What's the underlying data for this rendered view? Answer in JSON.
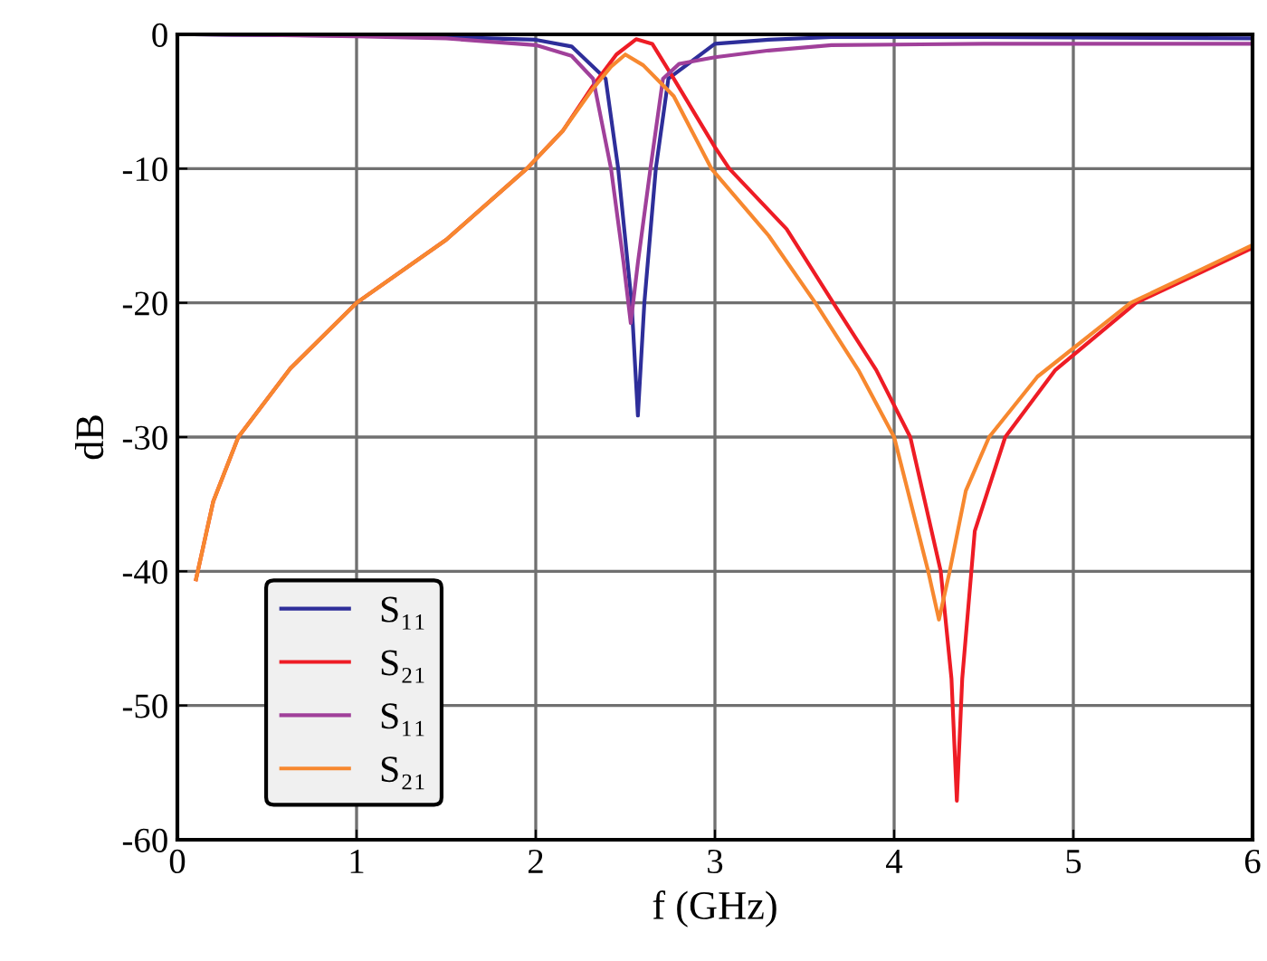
{
  "chart_data": {
    "type": "line",
    "xlabel": "f (GHz)",
    "ylabel": "dB",
    "xlim": [
      0,
      6
    ],
    "xticks": [
      0,
      1,
      2,
      3,
      4,
      5,
      6
    ],
    "ylim": [
      -60,
      0
    ],
    "yticks": [
      {
        "value": -60,
        "label": "-60"
      },
      {
        "value": -50,
        "label": "-50"
      },
      {
        "value": -40,
        "label": "-40"
      },
      {
        "value": -30,
        "label": "-30"
      },
      {
        "value": -20,
        "label": "-20"
      },
      {
        "value": -10,
        "label": "-10"
      },
      0
    ],
    "grid": true,
    "legend": "bottom left",
    "line_style": "solid",
    "marker": "none",
    "series": [
      {
        "name": "S₁₁",
        "color": "#2e2e9a",
        "x": [
          0.1,
          0.5,
          1.0,
          1.5,
          2.0,
          2.2,
          2.39,
          2.46,
          2.535,
          2.57,
          2.606,
          2.67,
          2.74,
          3.0,
          3.3,
          3.65,
          4.5,
          6.0
        ],
        "values": [
          0,
          -0.05,
          -0.1,
          -0.2,
          -0.4,
          -0.9,
          -3.3,
          -10,
          -20,
          -28.4,
          -20,
          -10,
          -3.3,
          -0.7,
          -0.4,
          -0.2,
          -0.2,
          -0.3
        ]
      },
      {
        "name": "S₂₁",
        "color": "#ee1c25",
        "x": [
          0.104,
          0.2,
          0.34,
          0.63,
          1.0,
          1.5,
          1.95,
          2.15,
          2.31,
          2.45,
          2.56,
          2.65,
          2.77,
          3.0,
          3.08,
          3.4,
          3.66,
          3.9,
          4.09,
          4.26,
          4.32,
          4.35,
          4.38,
          4.45,
          4.62,
          4.9,
          5.35,
          5.7,
          6.0
        ],
        "values": [
          -40.6,
          -34.8,
          -30,
          -24.9,
          -20,
          -15.3,
          -10,
          -7.2,
          -4.0,
          -1.5,
          -0.36,
          -0.7,
          -3.3,
          -8.4,
          -10,
          -14.5,
          -20,
          -25,
          -30,
          -40,
          -48,
          -57.1,
          -48,
          -37,
          -30,
          -25,
          -20,
          -17.8,
          -15.9
        ]
      },
      {
        "name": "S₁₁",
        "color": "#a0409a",
        "x": [
          0.1,
          0.5,
          1.0,
          1.5,
          2.0,
          2.2,
          2.32,
          2.42,
          2.49,
          2.53,
          2.57,
          2.64,
          2.71,
          2.8,
          3.0,
          3.3,
          3.65,
          4.5,
          6.0
        ],
        "values": [
          0,
          -0.05,
          -0.15,
          -0.3,
          -0.8,
          -1.6,
          -3.3,
          -10,
          -17,
          -21.5,
          -17,
          -10,
          -3.3,
          -2.2,
          -1.7,
          -1.2,
          -0.8,
          -0.7,
          -0.7
        ]
      },
      {
        "name": "S₂₁",
        "color": "#f7882f",
        "x": [
          0.104,
          0.2,
          0.34,
          0.63,
          1.0,
          1.5,
          1.95,
          2.15,
          2.31,
          2.42,
          2.5,
          2.6,
          2.77,
          2.98,
          3.3,
          3.56,
          3.8,
          4.0,
          4.19,
          4.25,
          4.31,
          4.4,
          4.53,
          4.8,
          5.32,
          5.7,
          6.0
        ],
        "values": [
          -40.6,
          -34.8,
          -30,
          -24.9,
          -20,
          -15.3,
          -10,
          -7.2,
          -4.2,
          -2.4,
          -1.5,
          -2.3,
          -4.6,
          -10,
          -15,
          -20,
          -25,
          -30,
          -40,
          -43.6,
          -40,
          -34,
          -30,
          -25.5,
          -20,
          -17.6,
          -15.7
        ]
      }
    ]
  }
}
